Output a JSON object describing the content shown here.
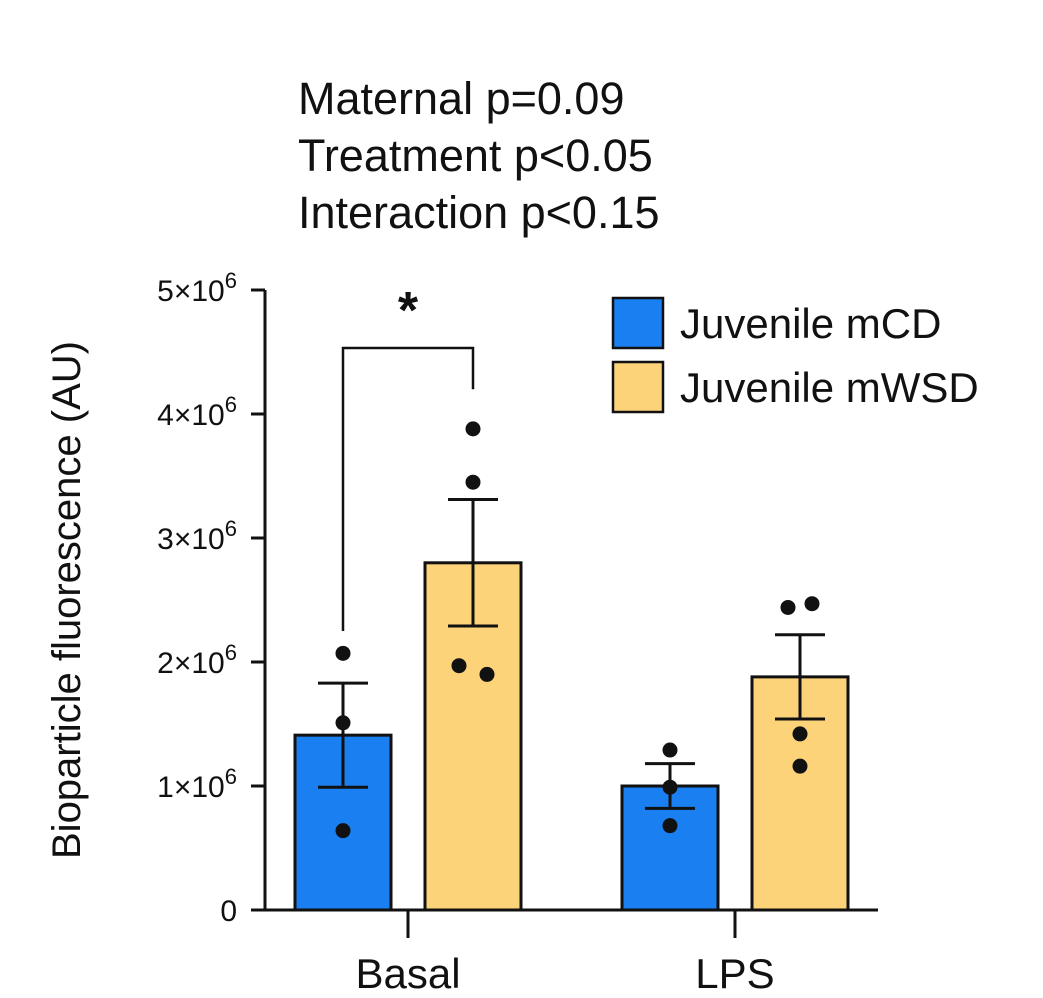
{
  "stats": {
    "maternal": "Maternal p=0.09",
    "treatment": "Treatment p<0.05",
    "interaction": "Interaction p<0.15"
  },
  "chart_data": {
    "type": "bar",
    "ylabel": "Bioparticle fluorescence (AU)",
    "xlabel": "",
    "ylim": [
      0,
      5000000
    ],
    "yticks": [
      {
        "value": 0,
        "label": "0",
        "exp": ""
      },
      {
        "value": 1000000,
        "label": "1×10",
        "exp": "6"
      },
      {
        "value": 2000000,
        "label": "2×10",
        "exp": "6"
      },
      {
        "value": 3000000,
        "label": "3×10",
        "exp": "6"
      },
      {
        "value": 4000000,
        "label": "4×10",
        "exp": "6"
      },
      {
        "value": 5000000,
        "label": "5×10",
        "exp": "6"
      }
    ],
    "categories": [
      "Basal",
      "LPS"
    ],
    "series": [
      {
        "name": "Juvenile mCD",
        "color": "#1a7ff0",
        "values": [
          1410000,
          1000000
        ],
        "sem": [
          420000,
          180000
        ],
        "points": [
          [
            2070000,
            1510000,
            640000
          ],
          [
            1290000,
            990000,
            680000
          ]
        ]
      },
      {
        "name": "Juvenile mWSD",
        "color": "#fdd37a",
        "values": [
          2800000,
          1880000
        ],
        "sem": [
          510000,
          340000
        ],
        "points": [
          [
            3880000,
            3450000,
            1970000,
            1900000
          ],
          [
            2440000,
            2470000,
            1420000,
            1160000
          ]
        ]
      }
    ],
    "significance": {
      "category": "Basal",
      "between": [
        "Juvenile mCD",
        "Juvenile mWSD"
      ],
      "label": "*"
    },
    "legend_position": "top-right"
  }
}
